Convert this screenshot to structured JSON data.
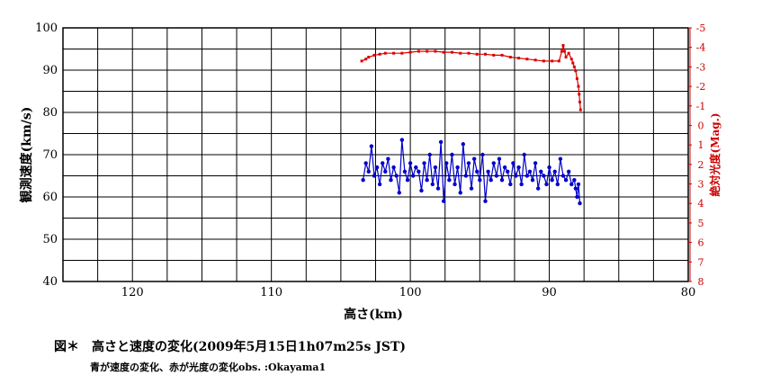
{
  "chart_data": {
    "type": "line",
    "xlabel": "高さ(km)",
    "ylabel": "観測速度(km/s)",
    "y2label": "絶対光度(Mag.)",
    "xlim": [
      125,
      80
    ],
    "ylim": [
      40,
      100
    ],
    "y2lim": [
      8,
      -5
    ],
    "x_ticks": [
      "120",
      "110",
      "100",
      "90",
      "80"
    ],
    "y_ticks": [
      "40",
      "50",
      "60",
      "70",
      "80",
      "90",
      "100"
    ],
    "y2_ticks": [
      "8",
      "7",
      "6",
      "5",
      "4",
      "3",
      "2",
      "1",
      "0",
      "-1",
      "-2",
      "-3",
      "-4",
      "-5"
    ],
    "grid": true,
    "series": [
      {
        "axis": "left",
        "color": "#0000cc",
        "marker": "circle",
        "x": [
          103.4,
          103.2,
          103.0,
          102.8,
          102.6,
          102.4,
          102.2,
          102.0,
          101.8,
          101.6,
          101.4,
          101.2,
          101.0,
          100.8,
          100.6,
          100.4,
          100.2,
          100.0,
          99.8,
          99.6,
          99.4,
          99.2,
          99.0,
          98.8,
          98.6,
          98.4,
          98.2,
          98.0,
          97.8,
          97.6,
          97.4,
          97.2,
          97.0,
          96.8,
          96.6,
          96.4,
          96.2,
          96.0,
          95.8,
          95.6,
          95.4,
          95.2,
          95.0,
          94.8,
          94.6,
          94.4,
          94.2,
          94.0,
          93.8,
          93.6,
          93.4,
          93.2,
          93.0,
          92.8,
          92.6,
          92.4,
          92.2,
          92.0,
          91.8,
          91.6,
          91.4,
          91.2,
          91.0,
          90.8,
          90.6,
          90.4,
          90.2,
          90.0,
          89.8,
          89.6,
          89.4,
          89.2,
          89.0,
          88.8,
          88.6,
          88.4,
          88.2,
          88.1,
          88.0,
          87.9,
          87.8
        ],
        "values": [
          64,
          68,
          66,
          72,
          65,
          67,
          63,
          68,
          66,
          69,
          64,
          67,
          65,
          61,
          73.5,
          66,
          64,
          68,
          65,
          67,
          66,
          61.5,
          68,
          64,
          70,
          63,
          67,
          62,
          73,
          59,
          68,
          64,
          70,
          63,
          67,
          61,
          72.5,
          65,
          68,
          62,
          69,
          66,
          64,
          70,
          59,
          66,
          64,
          68,
          65,
          69,
          64,
          67,
          66,
          63,
          68,
          65,
          67,
          63,
          70,
          65,
          66,
          64,
          68,
          62,
          66,
          65,
          63,
          67,
          64,
          66,
          63,
          69,
          65,
          64,
          66,
          63,
          64,
          62,
          60,
          63,
          58.5
        ]
      },
      {
        "axis": "right",
        "color": "#dd0000",
        "marker": "square",
        "x": [
          103.5,
          103.2,
          103.0,
          102.6,
          102.2,
          101.8,
          101.2,
          100.6,
          100.0,
          99.4,
          98.8,
          98.2,
          97.6,
          97.0,
          96.4,
          95.8,
          95.2,
          94.6,
          94.0,
          93.4,
          92.8,
          92.2,
          91.6,
          91.0,
          90.4,
          89.8,
          89.3,
          89.1,
          89.0,
          88.9,
          88.8,
          88.6,
          88.4,
          88.3,
          88.2,
          88.1,
          88.0,
          87.9,
          87.85,
          87.8,
          87.75
        ],
        "values": [
          -3.3,
          -3.4,
          -3.5,
          -3.6,
          -3.65,
          -3.7,
          -3.7,
          -3.7,
          -3.75,
          -3.8,
          -3.8,
          -3.8,
          -3.75,
          -3.75,
          -3.7,
          -3.7,
          -3.65,
          -3.65,
          -3.6,
          -3.6,
          -3.5,
          -3.45,
          -3.4,
          -3.35,
          -3.3,
          -3.3,
          -3.3,
          -3.8,
          -4.1,
          -3.8,
          -3.5,
          -3.7,
          -3.4,
          -3.2,
          -3.0,
          -2.8,
          -2.4,
          -2.0,
          -1.6,
          -1.2,
          -0.8
        ]
      }
    ]
  },
  "caption": {
    "title": "図＊　高さと速度の変化(2009年5月15日1h07m25s JST)",
    "subtitle": "青が速度の変化、赤が光度の変化obs. :Okayama1"
  }
}
